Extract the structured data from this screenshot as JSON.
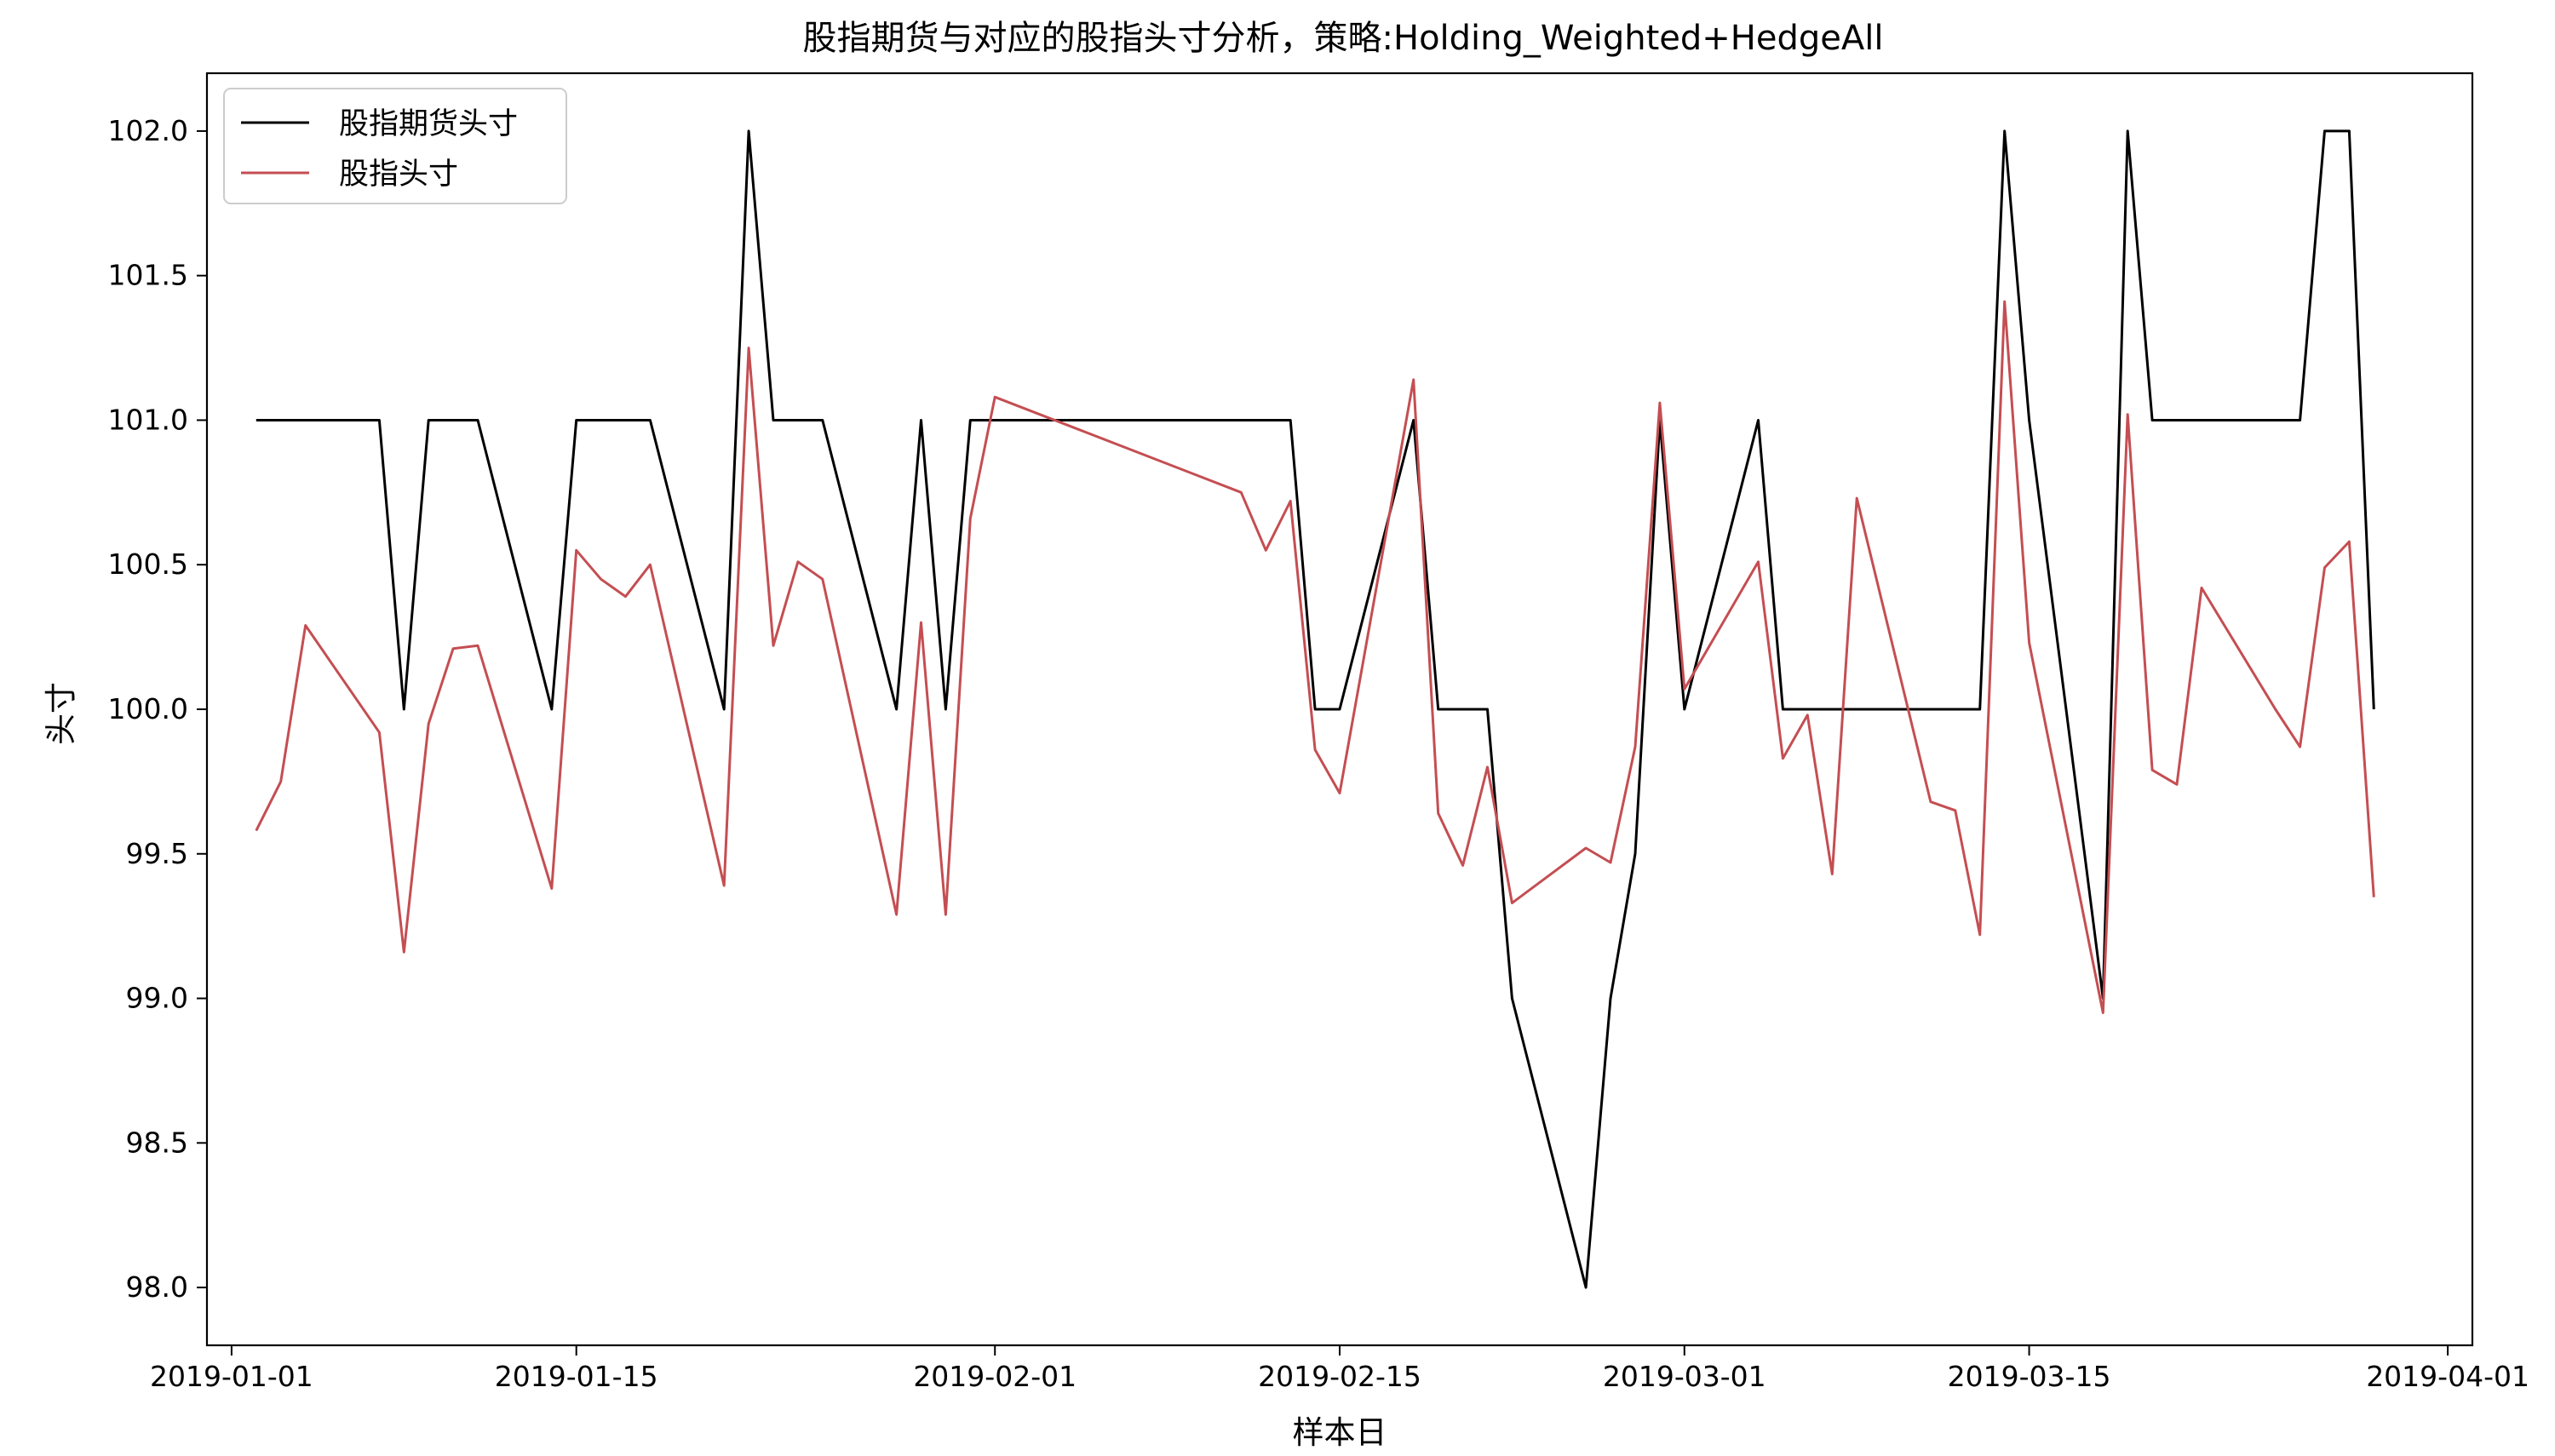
{
  "chart_data": {
    "type": "line",
    "title": "股指期货与对应的股指头寸分析，策略:Holding_Weighted+HedgeAll",
    "xlabel": "样本日",
    "ylabel": "头寸",
    "xlim": [
      "2018-12-31",
      "2019-04-02"
    ],
    "ylim": [
      97.8,
      102.2
    ],
    "x_ticks": [
      "2019-01-01",
      "2019-01-15",
      "2019-02-01",
      "2019-02-15",
      "2019-03-01",
      "2019-03-15",
      "2019-04-01"
    ],
    "y_ticks": [
      98.0,
      98.5,
      99.0,
      99.5,
      100.0,
      100.5,
      101.0,
      101.5,
      102.0
    ],
    "legend_position": "upper-left",
    "grid": false,
    "series": [
      {
        "name": "股指期货头寸",
        "color": "#000000",
        "points": [
          [
            "2019-01-02",
            101
          ],
          [
            "2019-01-03",
            101
          ],
          [
            "2019-01-04",
            101
          ],
          [
            "2019-01-07",
            101
          ],
          [
            "2019-01-08",
            100
          ],
          [
            "2019-01-09",
            101
          ],
          [
            "2019-01-10",
            101
          ],
          [
            "2019-01-11",
            101
          ],
          [
            "2019-01-14",
            100
          ],
          [
            "2019-01-15",
            101
          ],
          [
            "2019-01-16",
            101
          ],
          [
            "2019-01-17",
            101
          ],
          [
            "2019-01-18",
            101
          ],
          [
            "2019-01-21",
            100
          ],
          [
            "2019-01-22",
            102
          ],
          [
            "2019-01-23",
            101
          ],
          [
            "2019-01-24",
            101
          ],
          [
            "2019-01-25",
            101
          ],
          [
            "2019-01-28",
            100
          ],
          [
            "2019-01-29",
            101
          ],
          [
            "2019-01-30",
            100
          ],
          [
            "2019-01-31",
            101
          ],
          [
            "2019-02-01",
            101
          ],
          [
            "2019-02-11",
            101
          ],
          [
            "2019-02-12",
            101
          ],
          [
            "2019-02-13",
            101
          ],
          [
            "2019-02-14",
            100
          ],
          [
            "2019-02-15",
            100
          ],
          [
            "2019-02-18",
            101
          ],
          [
            "2019-02-19",
            100
          ],
          [
            "2019-02-20",
            100
          ],
          [
            "2019-02-21",
            100
          ],
          [
            "2019-02-22",
            99
          ],
          [
            "2019-02-25",
            98
          ],
          [
            "2019-02-26",
            99
          ],
          [
            "2019-02-27",
            99.5
          ],
          [
            "2019-02-28",
            101
          ],
          [
            "2019-03-01",
            100
          ],
          [
            "2019-03-04",
            101
          ],
          [
            "2019-03-05",
            100
          ],
          [
            "2019-03-06",
            100
          ],
          [
            "2019-03-07",
            100
          ],
          [
            "2019-03-08",
            100
          ],
          [
            "2019-03-11",
            100
          ],
          [
            "2019-03-12",
            100
          ],
          [
            "2019-03-13",
            100
          ],
          [
            "2019-03-14",
            102
          ],
          [
            "2019-03-15",
            101
          ],
          [
            "2019-03-18",
            99
          ],
          [
            "2019-03-19",
            102
          ],
          [
            "2019-03-20",
            101
          ],
          [
            "2019-03-21",
            101
          ],
          [
            "2019-03-22",
            101
          ],
          [
            "2019-03-25",
            101
          ],
          [
            "2019-03-26",
            101
          ],
          [
            "2019-03-27",
            102
          ],
          [
            "2019-03-28",
            102
          ],
          [
            "2019-03-29",
            100
          ]
        ]
      },
      {
        "name": "股指头寸",
        "color": "#c44e52",
        "points": [
          [
            "2019-01-02",
            99.58
          ],
          [
            "2019-01-03",
            99.75
          ],
          [
            "2019-01-04",
            100.29
          ],
          [
            "2019-01-07",
            99.92
          ],
          [
            "2019-01-08",
            99.16
          ],
          [
            "2019-01-09",
            99.95
          ],
          [
            "2019-01-10",
            100.21
          ],
          [
            "2019-01-11",
            100.22
          ],
          [
            "2019-01-14",
            99.38
          ],
          [
            "2019-01-15",
            100.55
          ],
          [
            "2019-01-16",
            100.45
          ],
          [
            "2019-01-17",
            100.39
          ],
          [
            "2019-01-18",
            100.5
          ],
          [
            "2019-01-21",
            99.39
          ],
          [
            "2019-01-22",
            101.25
          ],
          [
            "2019-01-23",
            100.22
          ],
          [
            "2019-01-24",
            100.51
          ],
          [
            "2019-01-25",
            100.45
          ],
          [
            "2019-01-28",
            99.29
          ],
          [
            "2019-01-29",
            100.3
          ],
          [
            "2019-01-30",
            99.29
          ],
          [
            "2019-01-31",
            100.66
          ],
          [
            "2019-02-01",
            101.08
          ],
          [
            "2019-02-11",
            100.75
          ],
          [
            "2019-02-12",
            100.55
          ],
          [
            "2019-02-13",
            100.72
          ],
          [
            "2019-02-14",
            99.86
          ],
          [
            "2019-02-15",
            99.71
          ],
          [
            "2019-02-18",
            101.14
          ],
          [
            "2019-02-19",
            99.64
          ],
          [
            "2019-02-20",
            99.46
          ],
          [
            "2019-02-21",
            99.8
          ],
          [
            "2019-02-22",
            99.33
          ],
          [
            "2019-02-25",
            99.52
          ],
          [
            "2019-02-26",
            99.47
          ],
          [
            "2019-02-27",
            99.87
          ],
          [
            "2019-02-28",
            101.06
          ],
          [
            "2019-03-01",
            100.07
          ],
          [
            "2019-03-04",
            100.51
          ],
          [
            "2019-03-05",
            99.83
          ],
          [
            "2019-03-06",
            99.98
          ],
          [
            "2019-03-07",
            99.43
          ],
          [
            "2019-03-08",
            100.73
          ],
          [
            "2019-03-11",
            99.68
          ],
          [
            "2019-03-12",
            99.65
          ],
          [
            "2019-03-13",
            99.22
          ],
          [
            "2019-03-14",
            101.41
          ],
          [
            "2019-03-15",
            100.23
          ],
          [
            "2019-03-18",
            98.95
          ],
          [
            "2019-03-19",
            101.02
          ],
          [
            "2019-03-20",
            99.79
          ],
          [
            "2019-03-21",
            99.74
          ],
          [
            "2019-03-22",
            100.42
          ],
          [
            "2019-03-25",
            100.0
          ],
          [
            "2019-03-26",
            99.87
          ],
          [
            "2019-03-27",
            100.49
          ],
          [
            "2019-03-28",
            100.58
          ],
          [
            "2019-03-29",
            99.35
          ]
        ]
      }
    ]
  }
}
